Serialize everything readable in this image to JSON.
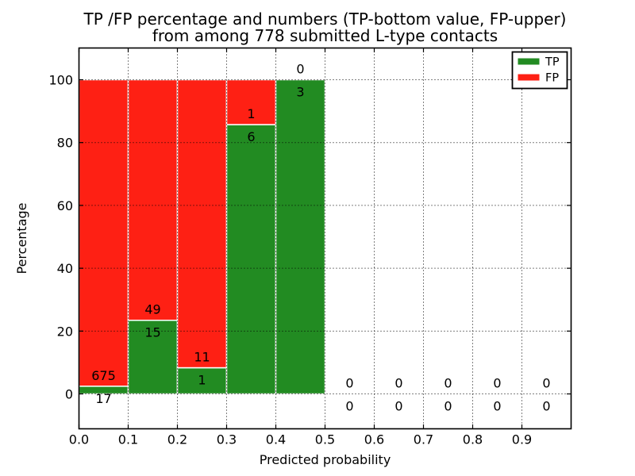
{
  "chart_data": {
    "type": "bar",
    "stacked": true,
    "title_line1": "TP /FP percentage and numbers (TP-bottom value, FP-upper)",
    "title_line2": "from among 778 submitted L-type contacts",
    "xlabel": "Predicted probability",
    "ylabel": "Percentage",
    "total_contacts": 778,
    "xlim": [
      0.0,
      1.0
    ],
    "ylim": [
      -11.1,
      110.1
    ],
    "x_bin_edges": [
      0.0,
      0.1,
      0.2,
      0.3,
      0.4,
      0.5,
      0.6,
      0.7,
      0.8,
      0.9,
      1.0
    ],
    "xtick_labels": [
      "0.0",
      "0.1",
      "0.2",
      "0.3",
      "0.4",
      "0.5",
      "0.6",
      "0.7",
      "0.8",
      "0.9"
    ],
    "ytick_values": [
      0,
      20,
      40,
      60,
      80,
      100
    ],
    "ytick_labels": [
      "0",
      "20",
      "40",
      "60",
      "80",
      "100"
    ],
    "grid": "dotted",
    "legend": {
      "position": "upper right",
      "entries": [
        {
          "label": "TP",
          "color": "#228b22"
        },
        {
          "label": "FP",
          "color": "#fe2014"
        }
      ]
    },
    "bars": [
      {
        "bin": "0.0-0.1",
        "tp": 17,
        "fp": 675
      },
      {
        "bin": "0.1-0.2",
        "tp": 15,
        "fp": 49
      },
      {
        "bin": "0.2-0.3",
        "tp": 1,
        "fp": 11
      },
      {
        "bin": "0.3-0.4",
        "tp": 6,
        "fp": 1
      },
      {
        "bin": "0.4-0.5",
        "tp": 3,
        "fp": 0
      },
      {
        "bin": "0.5-0.6",
        "tp": 0,
        "fp": 0
      },
      {
        "bin": "0.6-0.7",
        "tp": 0,
        "fp": 0
      },
      {
        "bin": "0.7-0.8",
        "tp": 0,
        "fp": 0
      },
      {
        "bin": "0.8-0.9",
        "tp": 0,
        "fp": 0
      },
      {
        "bin": "0.9-1.0",
        "tp": 0,
        "fp": 0
      }
    ],
    "colors": {
      "tp": "#228b22",
      "fp": "#fe2014",
      "bar_edge": "#ffffff",
      "grid": "#000000",
      "frame": "#000000",
      "background": "#ffffff",
      "text": "#000000"
    }
  }
}
